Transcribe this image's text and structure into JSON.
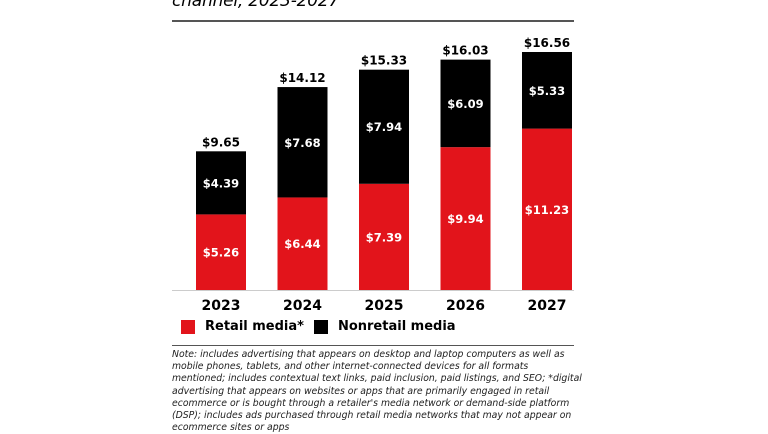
{
  "chart_data": {
    "type": "bar",
    "stacked": true,
    "title": "channel, 2023-2027",
    "categories": [
      "2023",
      "2024",
      "2025",
      "2026",
      "2027"
    ],
    "series": [
      {
        "name": "Retail media*",
        "color": "#e2141b",
        "values": [
          5.26,
          6.44,
          7.39,
          9.94,
          11.23
        ],
        "labels": [
          "$5.26",
          "$6.44",
          "$7.39",
          "$9.94",
          "$11.23"
        ]
      },
      {
        "name": "Nonretail media",
        "color": "#000000",
        "values": [
          4.39,
          7.68,
          7.94,
          6.09,
          5.33
        ],
        "labels": [
          "$4.39",
          "$7.68",
          "$7.94",
          "$6.09",
          "$5.33"
        ]
      }
    ],
    "totals": [
      9.65,
      14.12,
      15.33,
      16.03,
      16.56
    ],
    "total_labels": [
      "$9.65",
      "$14.12",
      "$15.33",
      "$16.03",
      "$16.56"
    ],
    "xlabel": "",
    "ylabel": "",
    "ylim": [
      0,
      16.56
    ],
    "grid": false,
    "legend": "bottom-left"
  },
  "legend": {
    "items": [
      {
        "label": "Retail media*",
        "color": "#e2141b"
      },
      {
        "label": "Nonretail media",
        "color": "#000000"
      }
    ]
  },
  "note": "Note: includes advertising that appears on desktop and laptop computers as well as mobile phones, tablets, and other internet-connected devices for all formats mentioned; includes contextual text links, paid inclusion, paid listings, and SEO; *digital advertising that appears on websites or apps that are primarily engaged in retail ecommerce or is bought through a retailer's media network or demand-side platform (DSP); includes ads purchased through retail media networks that may not appear on ecommerce sites or apps"
}
